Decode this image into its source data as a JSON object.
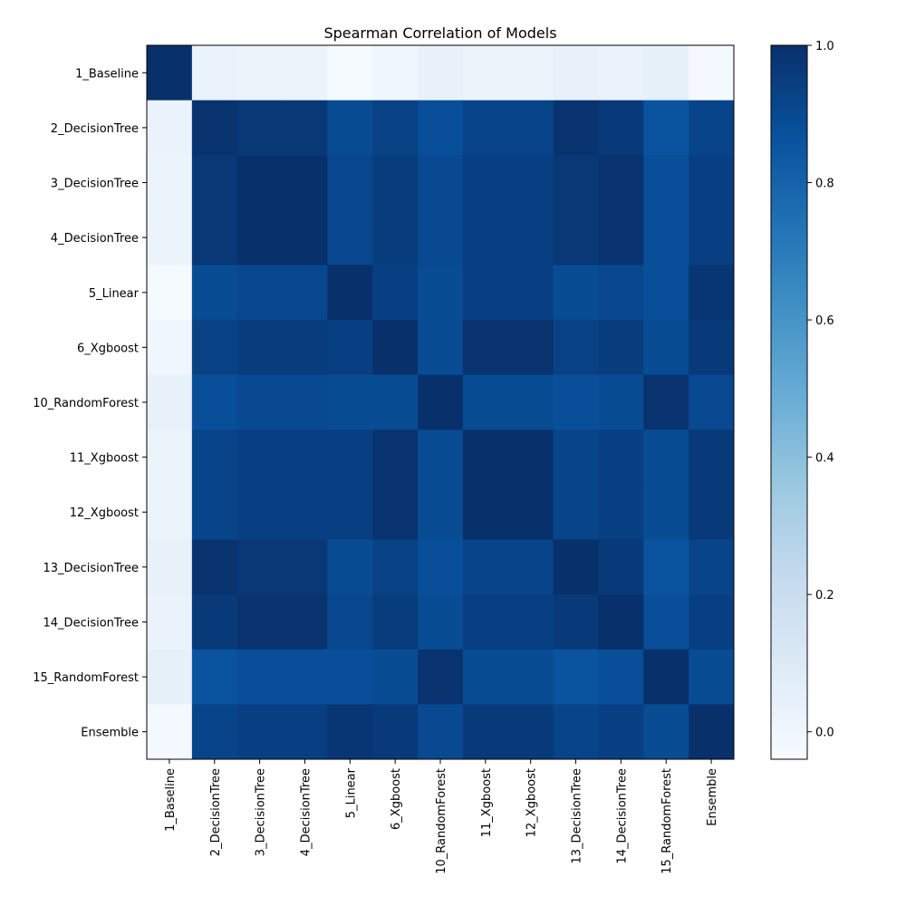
{
  "chart_data": {
    "type": "heatmap",
    "title": "Spearman Correlation of Models",
    "xlabel": "",
    "ylabel": "",
    "labels": [
      "1_Baseline",
      "2_DecisionTree",
      "3_DecisionTree",
      "4_DecisionTree",
      "5_Linear",
      "6_Xgboost",
      "10_RandomForest",
      "11_Xgboost",
      "12_Xgboost",
      "13_DecisionTree",
      "14_DecisionTree",
      "15_RandomForest",
      "Ensemble"
    ],
    "matrix": [
      [
        1.0,
        0.03,
        0.02,
        0.02,
        -0.03,
        0.0,
        0.04,
        0.02,
        0.02,
        0.04,
        0.03,
        0.05,
        -0.02
      ],
      [
        0.03,
        0.99,
        0.97,
        0.97,
        0.89,
        0.93,
        0.88,
        0.92,
        0.92,
        0.99,
        0.96,
        0.86,
        0.92
      ],
      [
        0.02,
        0.97,
        1.0,
        1.0,
        0.91,
        0.95,
        0.9,
        0.94,
        0.94,
        0.97,
        0.99,
        0.88,
        0.94
      ],
      [
        0.02,
        0.97,
        1.0,
        1.0,
        0.91,
        0.95,
        0.9,
        0.94,
        0.94,
        0.97,
        0.99,
        0.88,
        0.94
      ],
      [
        -0.03,
        0.89,
        0.91,
        0.91,
        1.0,
        0.94,
        0.89,
        0.94,
        0.94,
        0.89,
        0.91,
        0.88,
        0.98
      ],
      [
        0.0,
        0.93,
        0.95,
        0.95,
        0.94,
        1.0,
        0.89,
        0.99,
        0.99,
        0.93,
        0.95,
        0.89,
        0.96
      ],
      [
        0.04,
        0.88,
        0.9,
        0.9,
        0.89,
        0.89,
        1.0,
        0.89,
        0.89,
        0.88,
        0.89,
        0.99,
        0.9
      ],
      [
        0.02,
        0.92,
        0.94,
        0.94,
        0.94,
        0.99,
        0.89,
        1.0,
        1.0,
        0.92,
        0.94,
        0.89,
        0.96
      ],
      [
        0.02,
        0.92,
        0.94,
        0.94,
        0.94,
        0.99,
        0.89,
        1.0,
        1.0,
        0.92,
        0.94,
        0.89,
        0.96
      ],
      [
        0.04,
        0.99,
        0.97,
        0.97,
        0.89,
        0.93,
        0.88,
        0.92,
        0.92,
        1.0,
        0.96,
        0.86,
        0.92
      ],
      [
        0.03,
        0.96,
        0.99,
        0.99,
        0.91,
        0.95,
        0.89,
        0.94,
        0.94,
        0.96,
        1.0,
        0.88,
        0.94
      ],
      [
        0.05,
        0.86,
        0.88,
        0.88,
        0.88,
        0.89,
        0.99,
        0.89,
        0.89,
        0.86,
        0.88,
        1.0,
        0.89
      ],
      [
        -0.02,
        0.92,
        0.94,
        0.94,
        0.98,
        0.96,
        0.9,
        0.96,
        0.96,
        0.92,
        0.94,
        0.89,
        1.0
      ]
    ],
    "vmin": -0.04,
    "vmax": 1.0,
    "colormap": "Blues",
    "colorbar": {
      "ticks": [
        0.0,
        0.2,
        0.4,
        0.6,
        0.8,
        1.0
      ],
      "tick_labels": [
        "0.0",
        "0.2",
        "0.4",
        "0.6",
        "0.8",
        "1.0"
      ]
    },
    "grid": false,
    "legend": "colorbar-right"
  }
}
